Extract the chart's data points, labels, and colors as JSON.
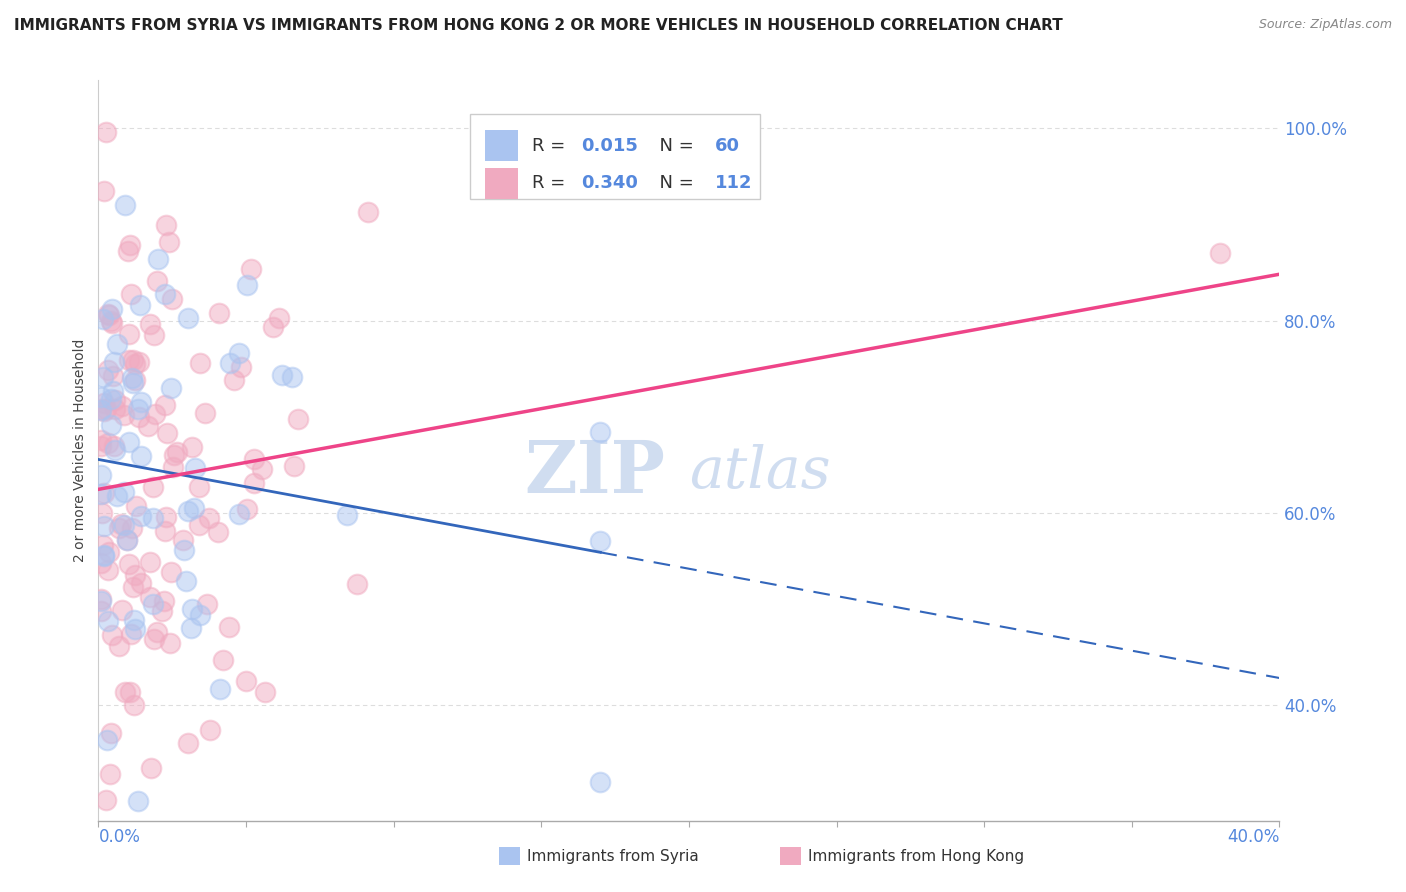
{
  "title": "IMMIGRANTS FROM SYRIA VS IMMIGRANTS FROM HONG KONG 2 OR MORE VEHICLES IN HOUSEHOLD CORRELATION CHART",
  "source": "Source: ZipAtlas.com",
  "ylabel": "2 or more Vehicles in Household",
  "syria_color": "#aac4f0",
  "hk_color": "#f0aac0",
  "syria_line_color": "#3366bb",
  "hk_line_color": "#ee4488",
  "watermark": "ZIPatlas",
  "syria_R": 0.015,
  "hk_R": 0.34,
  "syria_N": 60,
  "hk_N": 112,
  "xlim": [
    0.0,
    0.4
  ],
  "ylim": [
    0.28,
    1.05
  ],
  "ytick_vals": [
    0.4,
    0.6,
    0.8,
    1.0
  ],
  "ytick_labels": [
    "40.0%",
    "60.0%",
    "80.0%",
    "100.0%"
  ],
  "background": "#ffffff",
  "grid_color": "#dddddd",
  "tick_color": "#5588dd",
  "title_fontsize": 11,
  "legend_fontsize": 13,
  "watermark_color": "#c8d8ee",
  "circle_size": 200,
  "circle_alpha": 0.5
}
